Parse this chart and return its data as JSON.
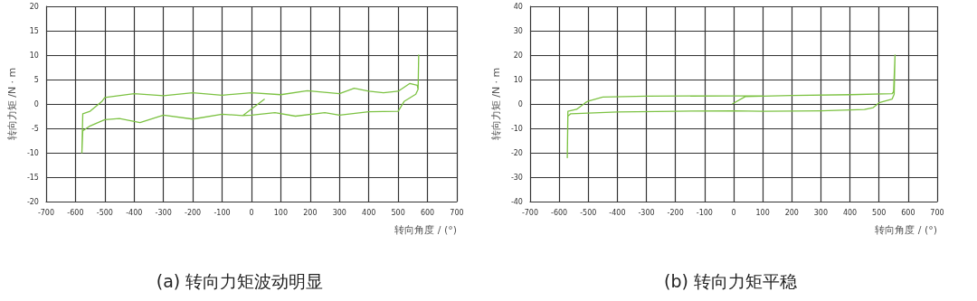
{
  "chart_data": [
    {
      "type": "line",
      "title": "(a) 转向力矩波动明显",
      "xlabel": "转向角度 / (°)",
      "ylabel": "转向力矩 /N · m",
      "xlim": [
        -700,
        700
      ],
      "xticks": [
        -700,
        -600,
        -500,
        -400,
        -300,
        -200,
        -100,
        0,
        100,
        200,
        300,
        400,
        500,
        600,
        700
      ],
      "ylim": [
        -20,
        20
      ],
      "yticks": [
        -20,
        -15,
        -10,
        -5,
        0,
        5,
        10,
        15,
        20
      ],
      "grid": true,
      "marker": "none",
      "line_style": "solid",
      "series": [
        {
          "color": "#7cc242",
          "x": [
            45,
            -30,
            -100,
            -200,
            -300,
            -380,
            -450,
            -500,
            -550,
            -575,
            -578,
            -575,
            -550,
            -510,
            -500,
            -400,
            -300,
            -200,
            -100,
            0,
            100,
            190,
            300,
            350,
            400,
            450,
            500,
            540,
            565,
            568,
            570,
            568,
            560,
            520,
            500,
            400,
            300,
            250,
            150,
            80,
            0,
            -30
          ],
          "values": [
            1,
            -2.4,
            -2.1,
            -3.1,
            -2.3,
            -3.8,
            -3,
            -3.2,
            -4.5,
            -5.5,
            -10,
            -2,
            -1.5,
            0.5,
            1.3,
            2.1,
            1.7,
            2.3,
            1.8,
            2.3,
            1.9,
            2.7,
            2.1,
            3.2,
            2.6,
            2.3,
            2.6,
            4.2,
            3.8,
            3,
            10,
            3,
            2,
            0.5,
            -1.5,
            -1.6,
            -2.3,
            -1.8,
            -2.5,
            -1.8,
            -2.3,
            -2.4
          ]
        }
      ]
    },
    {
      "type": "line",
      "title": "(b) 转向力矩平稳",
      "xlabel": "转向角度 / (°)",
      "ylabel": "转向力矩 /N · m",
      "xlim": [
        -700,
        700
      ],
      "xticks": [
        -700,
        -600,
        -500,
        -400,
        -300,
        -200,
        -100,
        0,
        100,
        200,
        300,
        400,
        500,
        600,
        700
      ],
      "ylim": [
        -40,
        40
      ],
      "yticks": [
        -40,
        -30,
        -20,
        -10,
        0,
        10,
        20,
        30,
        40
      ],
      "grid": true,
      "marker": "none",
      "line_style": "solid",
      "series": [
        {
          "color": "#7cc242",
          "x": [
            -5,
            40,
            100,
            200,
            400,
            545,
            550,
            555,
            552,
            545,
            500,
            480,
            450,
            300,
            100,
            0,
            -200,
            -400,
            -560,
            -570,
            -572,
            -570,
            -540,
            -510,
            -500,
            -450,
            -300,
            0,
            100
          ],
          "values": [
            0,
            3,
            3.2,
            3.5,
            3.8,
            4.2,
            5,
            20,
            4,
            2,
            0.5,
            -1.5,
            -2.3,
            -2.8,
            -3,
            -2.8,
            -3,
            -3.3,
            -4,
            -5,
            -22,
            -3,
            -2.2,
            0.5,
            1.2,
            2.8,
            3.2,
            3.3,
            3.3
          ]
        }
      ]
    }
  ]
}
